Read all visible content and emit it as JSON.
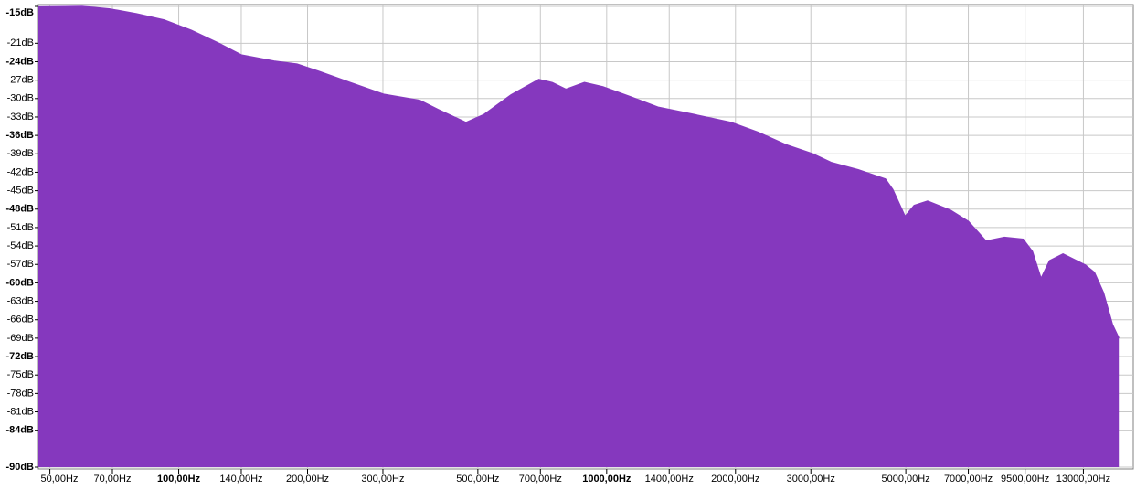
{
  "chart_data": {
    "type": "area",
    "color": "#8538be",
    "x_scale": "log",
    "grid": true,
    "x": [
      47,
      59.5,
      68.8,
      79.7,
      92.4,
      107,
      124,
      140,
      167,
      189,
      213,
      247,
      301,
      366,
      404,
      469,
      517,
      598,
      694,
      746,
      803,
      887,
      980,
      1136,
      1317,
      1600,
      1953,
      2261,
      2618,
      3031,
      3343,
      3870,
      4480,
      4660,
      4980,
      5230,
      5620,
      6360,
      7000,
      7700,
      8500,
      9400,
      9880,
      10350,
      10840,
      11650,
      13130,
      13790,
      14480,
      15200,
      15730
    ],
    "values": [
      -15.1,
      -15,
      -15.4,
      -16.2,
      -17.2,
      -18.9,
      -21,
      -22.9,
      -23.9,
      -24.4,
      -25.6,
      -27.2,
      -29.3,
      -30.3,
      -31.8,
      -33.9,
      -32.6,
      -29.4,
      -26.9,
      -27.4,
      -28.5,
      -27.4,
      -28.1,
      -29.7,
      -31.4,
      -32.6,
      -33.9,
      -35.5,
      -37.5,
      -39,
      -40.4,
      -41.6,
      -43.1,
      -44.8,
      -49.2,
      -47.4,
      -46.7,
      -48.2,
      -50,
      -53.2,
      -52.6,
      -52.9,
      -54.9,
      -59.3,
      -56.4,
      -55.3,
      -57.1,
      -58.3,
      -61.6,
      -66.8,
      -69
    ],
    "xlim": [
      47,
      17000
    ],
    "ylim": [
      -90,
      -15
    ],
    "xticks": [
      {
        "value": 50,
        "label": "50,00Hz"
      },
      {
        "value": 70,
        "label": "70,00Hz"
      },
      {
        "value": 100,
        "label": "100,00Hz",
        "bold": true
      },
      {
        "value": 140,
        "label": "140,00Hz"
      },
      {
        "value": 200,
        "label": "200,00Hz"
      },
      {
        "value": 300,
        "label": "300,00Hz"
      },
      {
        "value": 500,
        "label": "500,00Hz"
      },
      {
        "value": 700,
        "label": "700,00Hz"
      },
      {
        "value": 1000,
        "label": "1000,00Hz",
        "bold": true
      },
      {
        "value": 1400,
        "label": "1400,00Hz"
      },
      {
        "value": 2000,
        "label": "2000,00Hz"
      },
      {
        "value": 3000,
        "label": "3000,00Hz"
      },
      {
        "value": 5000,
        "label": "5000,00Hz"
      },
      {
        "value": 7000,
        "label": "7000,00Hz"
      },
      {
        "value": 9500,
        "label": "9500,00Hz"
      },
      {
        "value": 13000,
        "label": "13000,00Hz"
      }
    ],
    "yticks": [
      {
        "value": -15,
        "label": "-15dB",
        "bold": true
      },
      {
        "value": -21,
        "label": "-21dB"
      },
      {
        "value": -24,
        "label": "-24dB",
        "bold": true
      },
      {
        "value": -27,
        "label": "-27dB"
      },
      {
        "value": -30,
        "label": "-30dB"
      },
      {
        "value": -33,
        "label": "-33dB"
      },
      {
        "value": -36,
        "label": "-36dB",
        "bold": true
      },
      {
        "value": -39,
        "label": "-39dB"
      },
      {
        "value": -42,
        "label": "-42dB"
      },
      {
        "value": -45,
        "label": "-45dB"
      },
      {
        "value": -48,
        "label": "-48dB",
        "bold": true
      },
      {
        "value": -51,
        "label": "-51dB"
      },
      {
        "value": -54,
        "label": "-54dB"
      },
      {
        "value": -57,
        "label": "-57dB"
      },
      {
        "value": -60,
        "label": "-60dB",
        "bold": true
      },
      {
        "value": -63,
        "label": "-63dB"
      },
      {
        "value": -66,
        "label": "-66dB"
      },
      {
        "value": -69,
        "label": "-69dB"
      },
      {
        "value": -72,
        "label": "-72dB",
        "bold": true
      },
      {
        "value": -75,
        "label": "-75dB"
      },
      {
        "value": -78,
        "label": "-78dB"
      },
      {
        "value": -81,
        "label": "-81dB"
      },
      {
        "value": -84,
        "label": "-84dB",
        "bold": true
      },
      {
        "value": -90,
        "label": "-90dB",
        "bold": true
      }
    ]
  }
}
